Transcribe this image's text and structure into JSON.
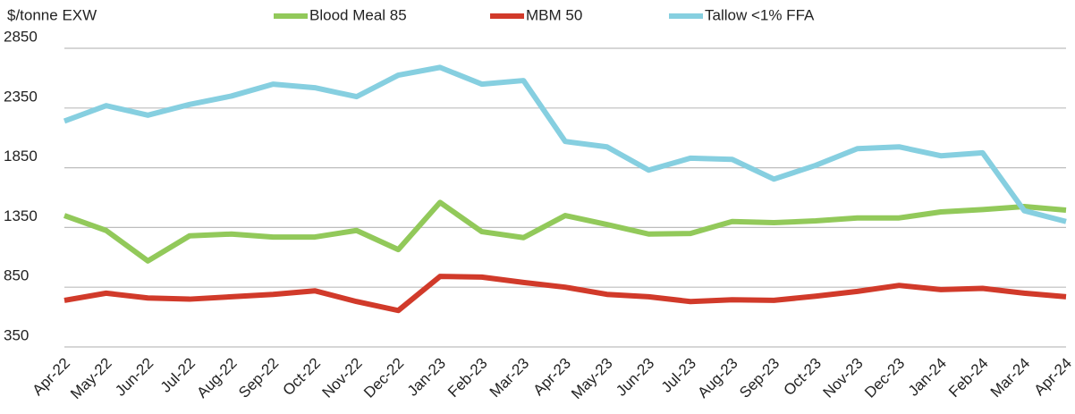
{
  "chart_data": {
    "type": "line",
    "y_axis_label": "$/tonne EXW",
    "categories": [
      "Apr-22",
      "May-22",
      "Jun-22",
      "Jul-22",
      "Aug-22",
      "Sep-22",
      "Oct-22",
      "Nov-22",
      "Dec-22",
      "Jan-23",
      "Feb-23",
      "Mar-23",
      "Apr-23",
      "May-23",
      "Jun-23",
      "Jul-23",
      "Aug-23",
      "Sep-23",
      "Oct-23",
      "Nov-23",
      "Dec-23",
      "Jan-24",
      "Feb-24",
      "Mar-24",
      "Apr-24"
    ],
    "series": [
      {
        "name": "Blood Meal 85",
        "color": "#92c95a",
        "values": [
          1450,
          1325,
          1070,
          1280,
          1295,
          1270,
          1270,
          1325,
          1165,
          1560,
          1315,
          1265,
          1450,
          1375,
          1295,
          1300,
          1400,
          1390,
          1405,
          1430,
          1430,
          1480,
          1500,
          1525,
          1495
        ]
      },
      {
        "name": "MBM 50",
        "color": "#d13a2a",
        "values": [
          740,
          800,
          760,
          750,
          770,
          790,
          820,
          730,
          655,
          940,
          935,
          890,
          850,
          790,
          770,
          730,
          745,
          740,
          775,
          815,
          865,
          830,
          840,
          800,
          770
        ]
      },
      {
        "name": "Tallow <1% FFA",
        "color": "#86cfe0",
        "values": [
          2240,
          2370,
          2290,
          2380,
          2450,
          2550,
          2520,
          2445,
          2625,
          2690,
          2550,
          2580,
          2070,
          2025,
          1830,
          1930,
          1920,
          1755,
          1870,
          2010,
          2025,
          1950,
          1975,
          1490,
          1400
        ]
      }
    ],
    "ylim": [
      350,
      2850
    ],
    "yticks": [
      350,
      850,
      1350,
      1850,
      2350,
      2850
    ],
    "grid": true
  }
}
